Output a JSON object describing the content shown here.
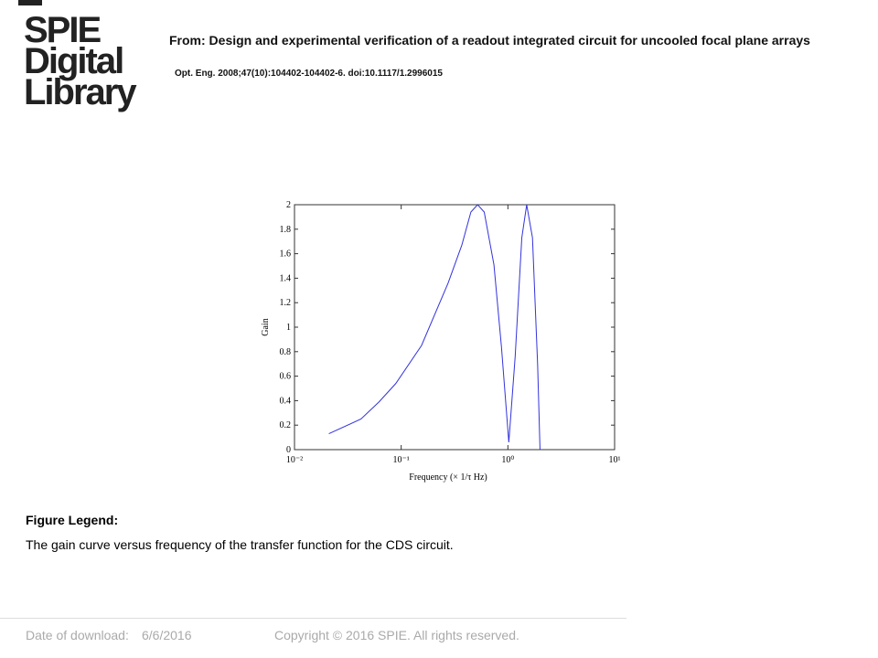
{
  "logo": [
    "SPIE",
    "Digital",
    "Library"
  ],
  "header": {
    "from": "From: Design and experimental verification of a readout integrated circuit for uncooled focal plane arrays",
    "citation": "Opt. Eng. 2008;47(10):104402-104402-6. doi:10.1117/1.2996015"
  },
  "chart_data": {
    "type": "line",
    "xscale": "log",
    "ylabel": "Gain",
    "xlabel": "Frequency (× 1/τ Hz)",
    "x": [
      0.021,
      0.042,
      0.062,
      0.089,
      0.155,
      0.275,
      0.37,
      0.45,
      0.52,
      0.6,
      0.74,
      0.87,
      1.02,
      1.17,
      1.35,
      1.5,
      1.7,
      1.9,
      2.0
    ],
    "series": [
      {
        "color": "#3333dd",
        "values": [
          0.13,
          0.25,
          0.39,
          0.54,
          0.85,
          1.36,
          1.67,
          1.94,
          2.0,
          1.94,
          1.51,
          0.84,
          0.06,
          0.76,
          1.73,
          2.0,
          1.73,
          0.69,
          0.0
        ]
      }
    ],
    "xlim": [
      0.01,
      10
    ],
    "xticks": [
      {
        "value": 0.01,
        "label": "10⁻²"
      },
      {
        "value": 0.1,
        "label": "10⁻¹"
      },
      {
        "value": 1,
        "label": "10⁰"
      },
      {
        "value": 10,
        "label": "10¹"
      }
    ],
    "ylim": [
      0,
      2
    ],
    "yticks": [
      0,
      0.2,
      0.4,
      0.6,
      0.8,
      1,
      1.2,
      1.4,
      1.6,
      1.8,
      2
    ]
  },
  "legend": {
    "heading": "Figure Legend:",
    "text": "The gain curve versus frequency of the transfer function for the CDS circuit."
  },
  "footer": {
    "date_label": "Date of download:",
    "date": "6/6/2016",
    "copyright": "Copyright © 2016 SPIE. All rights reserved."
  }
}
